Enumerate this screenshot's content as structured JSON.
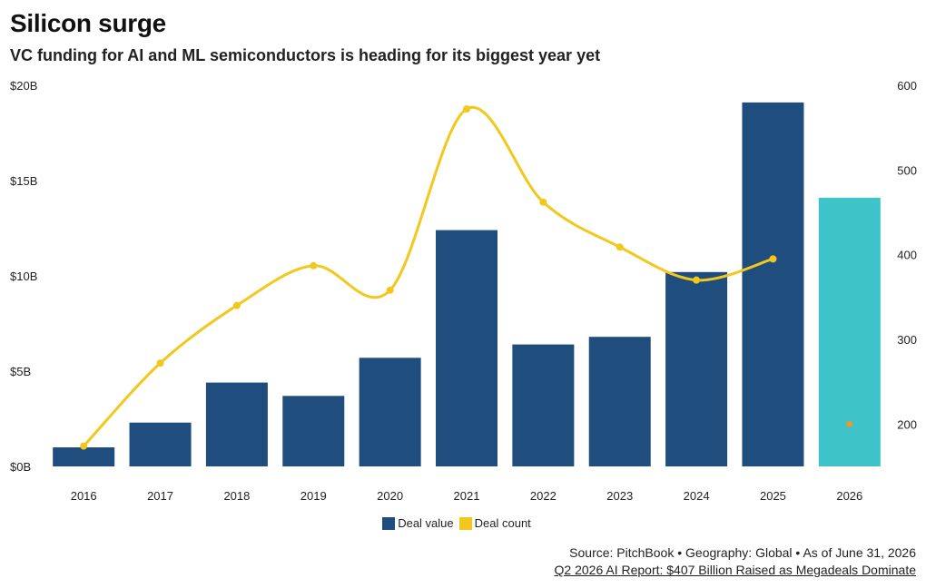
{
  "title": "Silicon surge",
  "subtitle": "VC funding for AI and ML semiconductors is heading for its biggest year yet",
  "source": "Source: PitchBook • Geography: Global • As of June 31, 2026",
  "report_link": "Q2 2026 AI Report: $407 Billion Raised as Megadeals Dominate",
  "colors": {
    "deal_value": "#1f4e7e",
    "deal_value_projected": "#3ec3c9",
    "deal_count": "#f2c81d",
    "deal_count_projected": "#e89a2c"
  },
  "legend": [
    {
      "label": "Deal value",
      "color": "#1f4e7e"
    },
    {
      "label": "Deal count",
      "color": "#f2c81d"
    }
  ],
  "chart_data": {
    "type": "bar",
    "categories": [
      "2016",
      "2017",
      "2018",
      "2019",
      "2020",
      "2021",
      "2022",
      "2023",
      "2024",
      "2025",
      "2026"
    ],
    "series": [
      {
        "name": "Deal value",
        "axis": "left",
        "type": "bar",
        "values": [
          1.0,
          2.3,
          4.4,
          3.7,
          5.7,
          12.4,
          6.4,
          6.8,
          10.2,
          19.1,
          14.1
        ]
      },
      {
        "name": "Deal count",
        "axis": "right",
        "type": "line",
        "values": [
          174,
          272,
          340,
          387,
          358,
          572,
          462,
          409,
          370,
          395,
          200
        ]
      }
    ],
    "projected_index": 10,
    "left_axis": {
      "ticks": [
        "$0B",
        "$5B",
        "$10B",
        "$15B",
        "$20B"
      ],
      "ylim": [
        0,
        20
      ]
    },
    "right_axis": {
      "ticks": [
        "200",
        "300",
        "400",
        "500",
        "600"
      ],
      "ylim": [
        150,
        600
      ]
    },
    "legend_position": "bottom",
    "grid": false
  }
}
